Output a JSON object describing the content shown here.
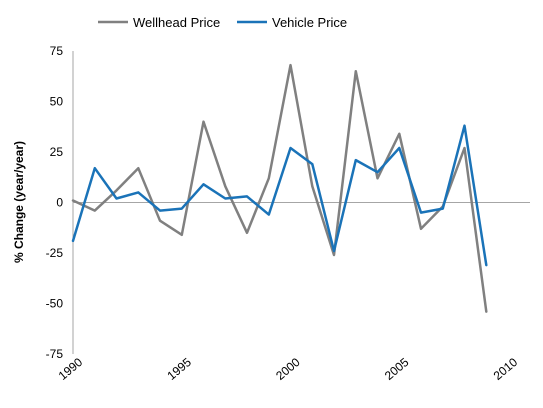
{
  "chart_data": {
    "type": "line",
    "ylabel": "% Change (year/year)",
    "xlabel": "",
    "ylim": [
      -75,
      75
    ],
    "y_ticks": [
      75,
      50,
      25,
      0,
      -25,
      -50,
      -75
    ],
    "y_tick_labels": [
      "75",
      "50",
      "25",
      "0",
      "-25",
      "-50",
      "-75"
    ],
    "xlim": [
      1990,
      2010
    ],
    "x_ticks": [
      1990,
      1995,
      2000,
      2005,
      2010
    ],
    "x_tick_labels": [
      "1990",
      "1995",
      "2000",
      "2005",
      "2010"
    ],
    "grid": false,
    "legend_position": "top",
    "series": [
      {
        "name": "Wellhead Price",
        "color": "#808080",
        "x": [
          1990,
          1991,
          1992,
          1993,
          1994,
          1995,
          1996,
          1997,
          1998,
          1999,
          2000,
          2001,
          2002,
          2003,
          2004,
          2005,
          2006,
          2007,
          2008,
          2009
        ],
        "values": [
          1,
          -4,
          6,
          17,
          -9,
          -16,
          40,
          8,
          -15,
          12,
          68,
          8,
          -26,
          65,
          12,
          34,
          -13,
          -2,
          27,
          -54
        ]
      },
      {
        "name": "Vehicle Price",
        "color": "#1a73b8",
        "x": [
          1990,
          1991,
          1992,
          1993,
          1994,
          1995,
          1996,
          1997,
          1998,
          1999,
          2000,
          2001,
          2002,
          2003,
          2004,
          2005,
          2006,
          2007,
          2008,
          2009
        ],
        "values": [
          -19,
          17,
          2,
          5,
          -4,
          -3,
          9,
          2,
          3,
          -6,
          27,
          19,
          -24,
          21,
          15,
          27,
          -5,
          -3,
          38,
          -31
        ]
      }
    ]
  }
}
